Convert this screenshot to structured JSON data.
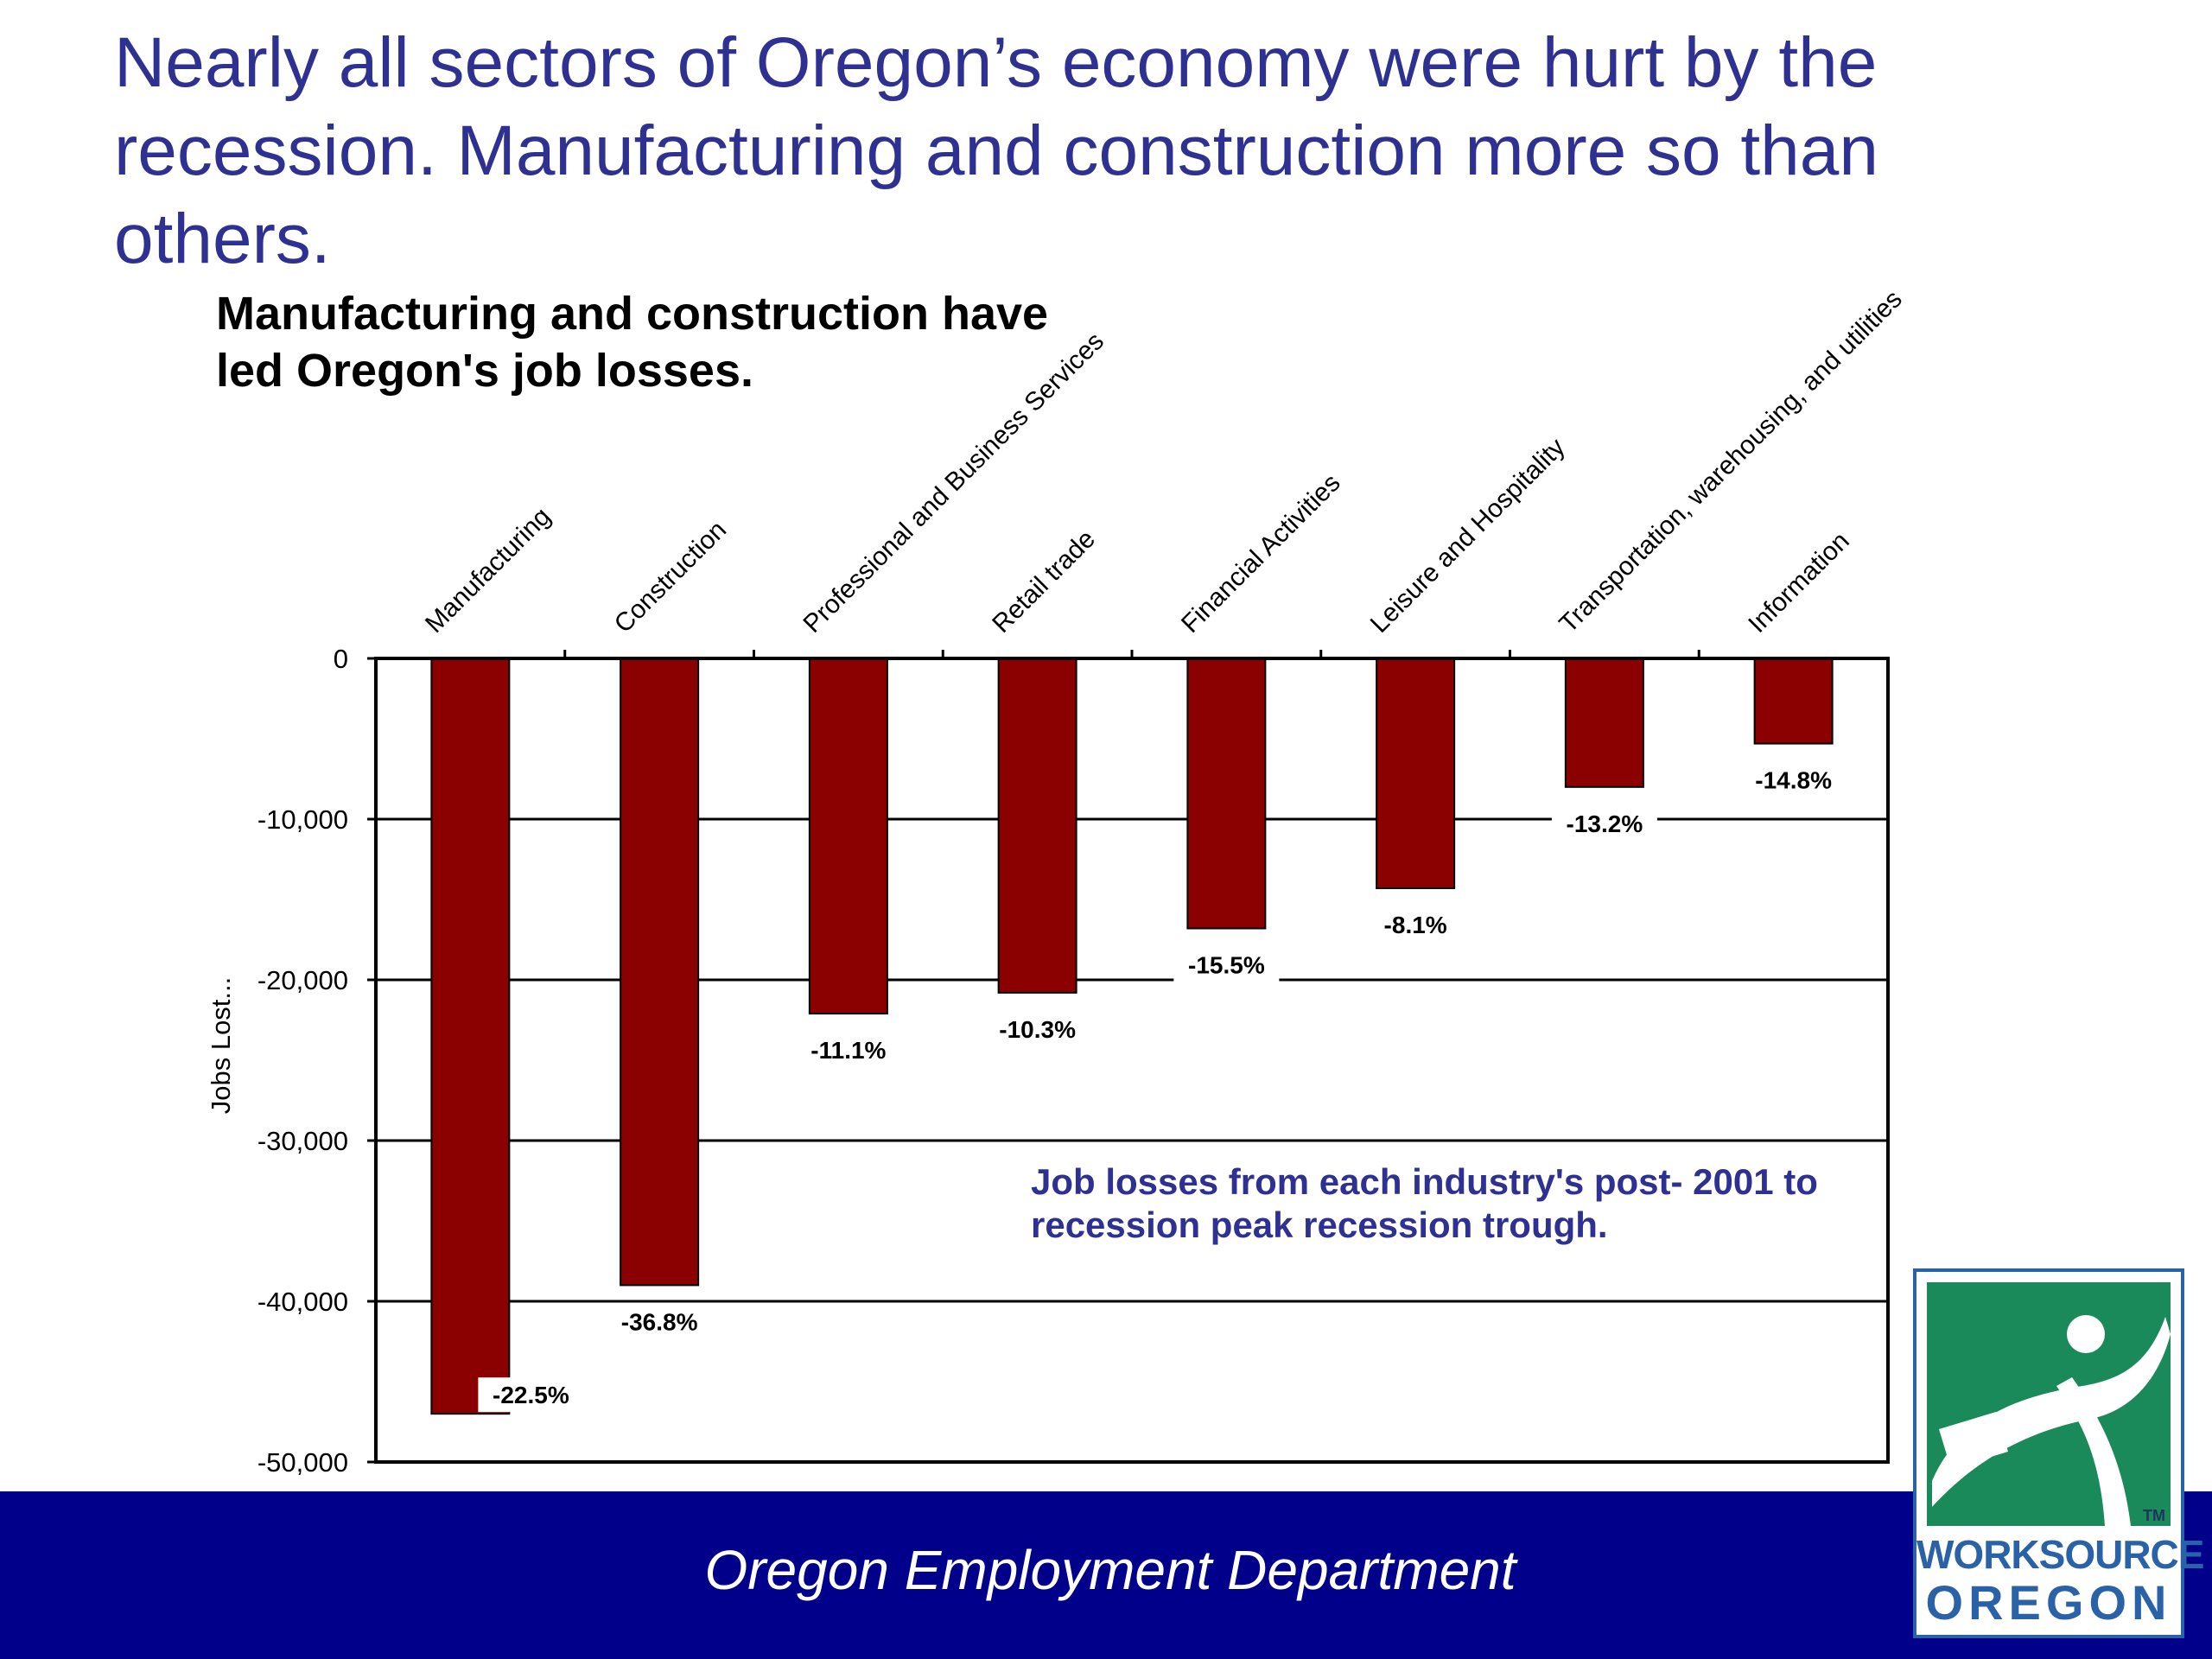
{
  "slide": {
    "title": "Nearly all sectors of Oregon’s economy were hurt by the recession. Manufacturing and construction more so than others.",
    "footer": "Oregon Employment Department"
  },
  "logo": {
    "line1": "WORKSOURCE",
    "line2": "OREGON",
    "tm": "TM"
  },
  "colors": {
    "title": "#2e3192",
    "bar": "#8b0000",
    "annotation": "#2e3192",
    "footer_band": "#00008b",
    "logo_green": "#1b8a5a",
    "logo_blue": "#2a62a8"
  },
  "chart_data": {
    "type": "bar",
    "title": "Manufacturing and construction have led Oregon's job losses.",
    "ylabel": "Jobs Lost...",
    "xlabel": "",
    "categories": [
      "Manufacturing",
      "Construction",
      "Professional and Business Services",
      "Retail trade",
      "Financial Activities",
      "Leisure and Hospitality",
      "Transportation, warehousing, and utilities",
      "Information"
    ],
    "values": [
      -47000,
      -39000,
      -22100,
      -20800,
      -16800,
      -14300,
      -8000,
      -5300
    ],
    "data_labels": [
      "-22.5%",
      "-36.8%",
      "-11.1%",
      "-10.3%",
      "-15.5%",
      "-8.1%",
      "-13.2%",
      "-14.8%"
    ],
    "ylim": [
      -50000,
      0
    ],
    "yticks": [
      0,
      -10000,
      -20000,
      -30000,
      -40000,
      -50000
    ],
    "ytick_labels": [
      "0",
      "-10,000",
      "-20,000",
      "-30,000",
      "-40,000",
      "-50,000"
    ],
    "grid": true,
    "annotation": "Job losses from each industry's post- 2001 recession peak to recession trough."
  }
}
